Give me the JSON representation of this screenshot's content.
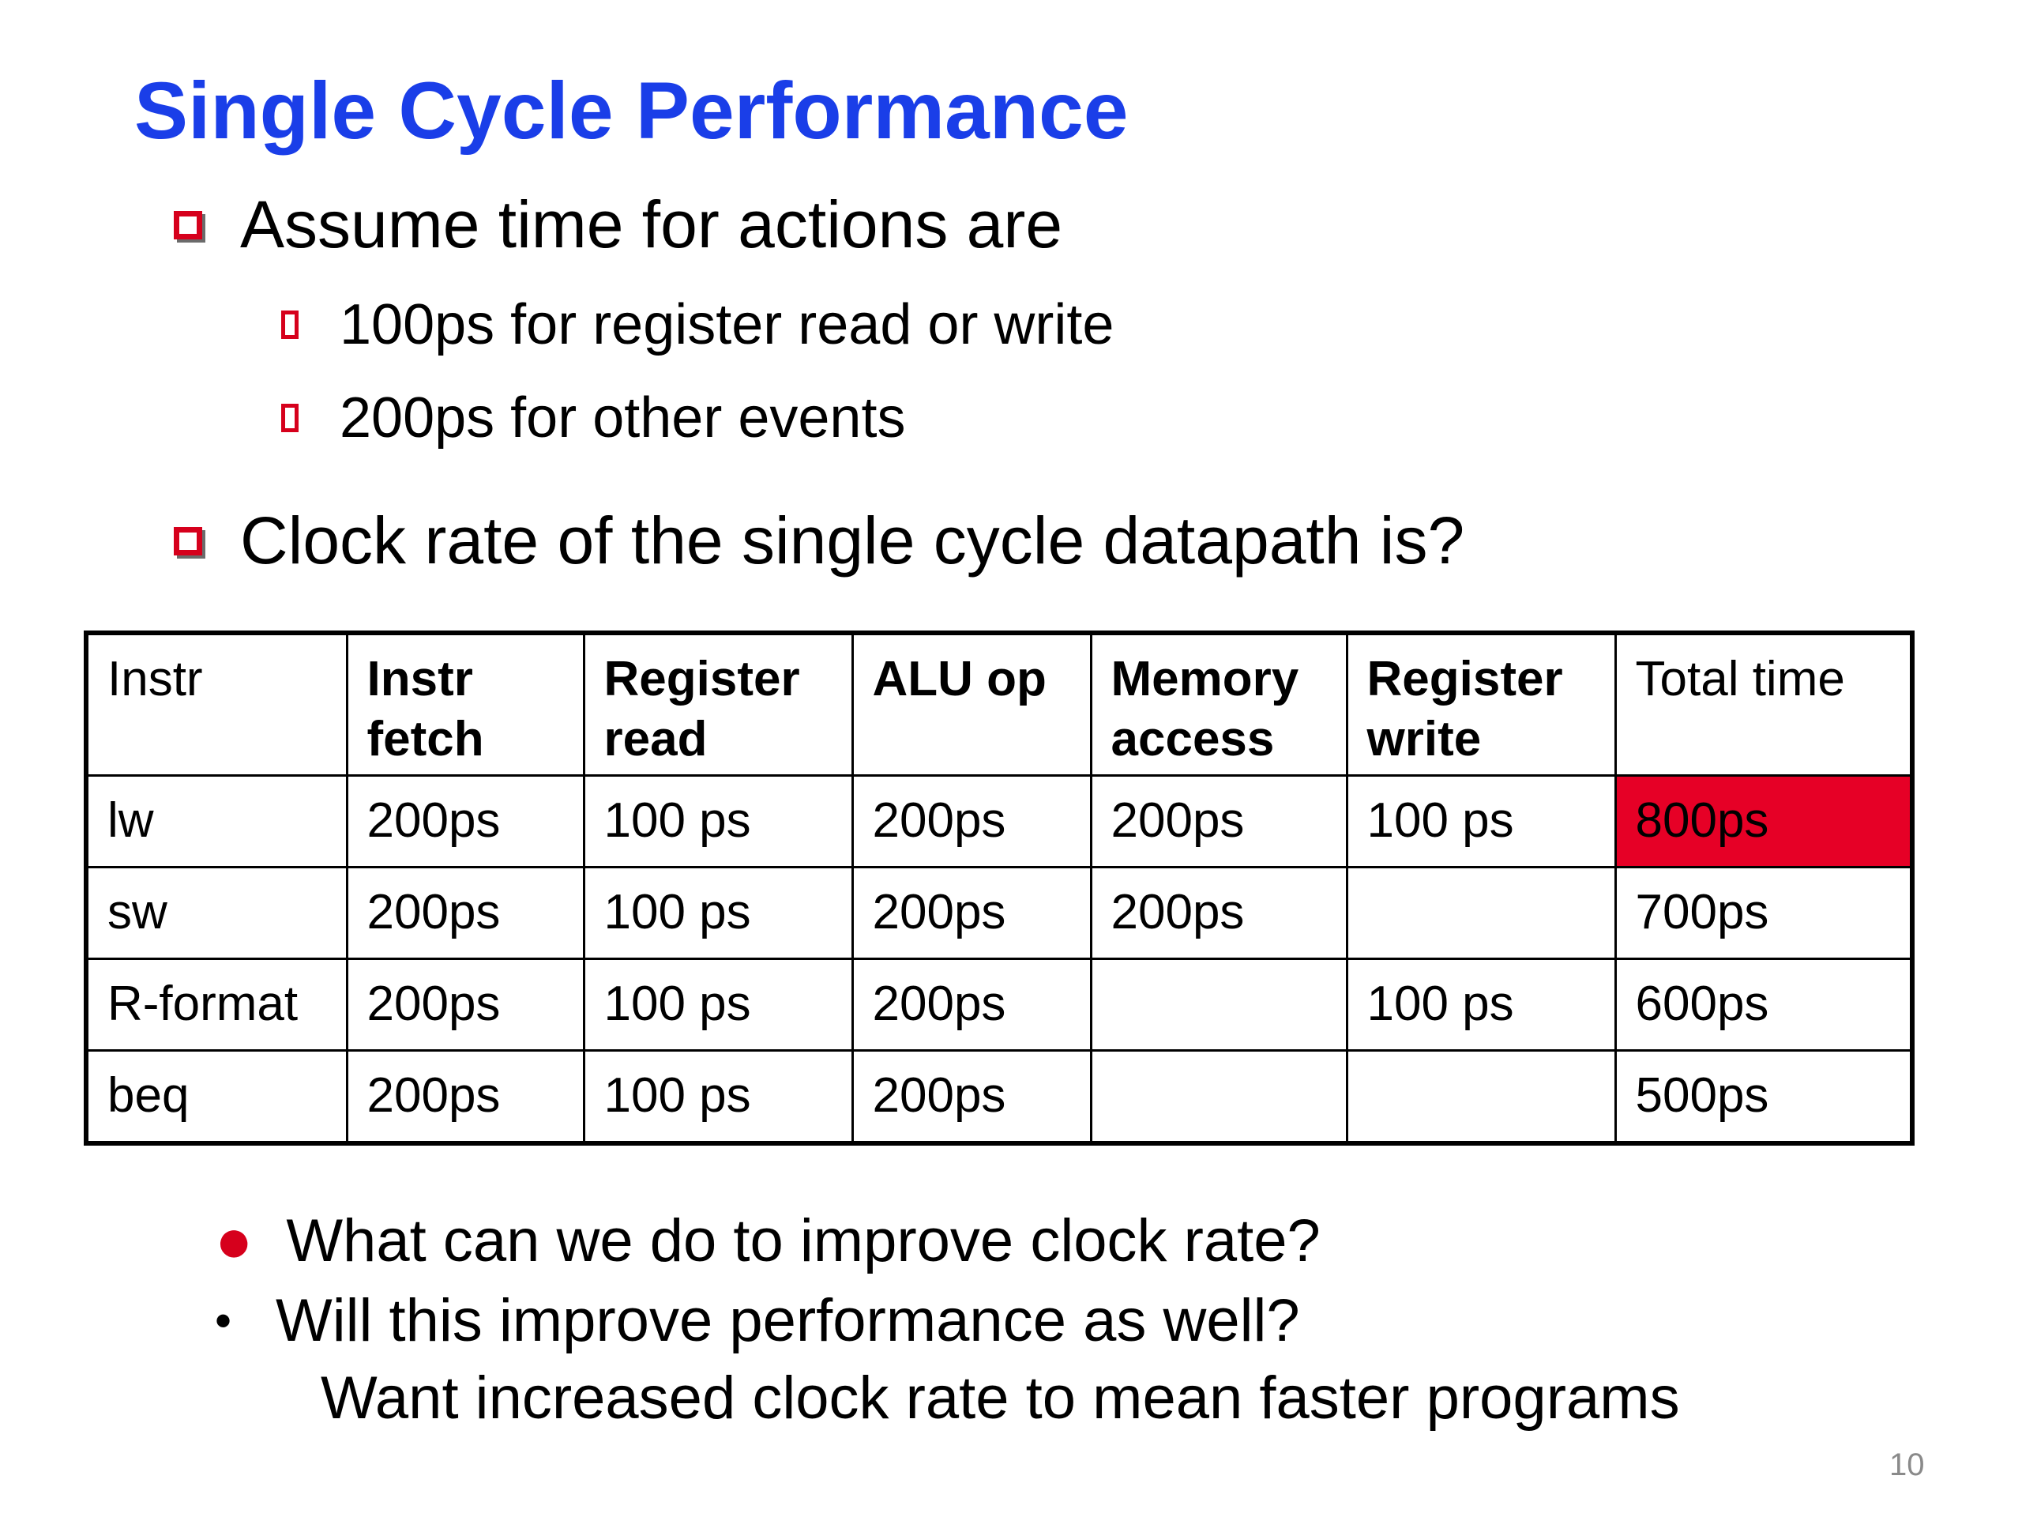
{
  "title": "Single Cycle Performance",
  "bullets": {
    "assume": "Assume time for actions are",
    "sub1": "100ps for register read or write",
    "sub2": "200ps for other events",
    "clock": "Clock rate of the single cycle datapath is?"
  },
  "table": {
    "headers": [
      "Instr",
      "Instr fetch",
      "Register read",
      "ALU op",
      "Memory access",
      "Register write",
      "Total time"
    ],
    "rows": [
      [
        "lw",
        "200ps",
        "100 ps",
        "200ps",
        "200ps",
        "100 ps",
        "800ps"
      ],
      [
        "sw",
        "200ps",
        "100 ps",
        "200ps",
        "200ps",
        "",
        "700ps"
      ],
      [
        "R-format",
        "200ps",
        "100 ps",
        "200ps",
        "",
        "100 ps",
        "600ps"
      ],
      [
        "beq",
        "200ps",
        "100 ps",
        "200ps",
        "",
        "",
        "500ps"
      ]
    ],
    "highlight_color": "#e60026"
  },
  "questions": {
    "q1": "What can we do to improve clock rate?",
    "q2": "Will this improve performance as well?",
    "q2_follow": "Want increased clock rate to mean faster programs"
  },
  "page_number": "10",
  "colors": {
    "title": "#1a3ee8",
    "bullet_red": "#d6001c"
  }
}
